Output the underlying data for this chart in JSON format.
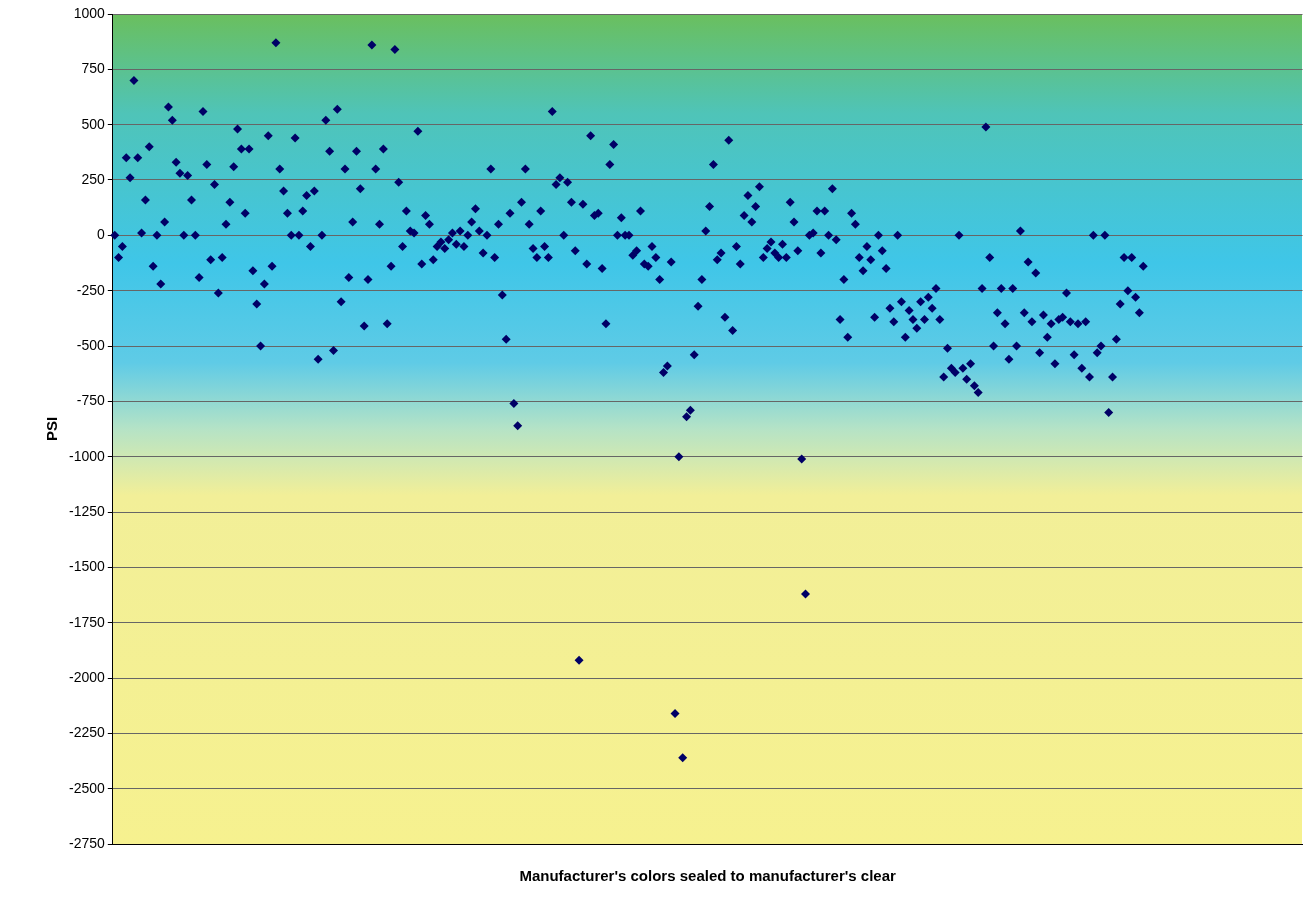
{
  "chart_data": {
    "type": "scatter",
    "xlabel": "Manufacturer's colors sealed to manufacturer's clear",
    "ylabel": "PSI",
    "categories": [
      null,
      null,
      null,
      null,
      null,
      null,
      null,
      null,
      null,
      null,
      null,
      null,
      null,
      null,
      null,
      null,
      null,
      null,
      null,
      null,
      null,
      null,
      null,
      null,
      null,
      null,
      null,
      null,
      null,
      null,
      null,
      null,
      null,
      null,
      null,
      null,
      null,
      null,
      null,
      null,
      null,
      null,
      null,
      null,
      null,
      null,
      null,
      null,
      null,
      null,
      null,
      null,
      null,
      null,
      null,
      null,
      null,
      null,
      null,
      null,
      null,
      null,
      null,
      null,
      null,
      null,
      null,
      null,
      null,
      null,
      null,
      null,
      null,
      null,
      null,
      null,
      null,
      null,
      null,
      null,
      null,
      null,
      null,
      null,
      null,
      null,
      null,
      null,
      null,
      null,
      null,
      null,
      null,
      null,
      null,
      null,
      null,
      null,
      null,
      null,
      null,
      null,
      null,
      null,
      null,
      null,
      null,
      null,
      null,
      null,
      null,
      null,
      null,
      null,
      null,
      null,
      null,
      null,
      null,
      null,
      null,
      null,
      null,
      null,
      null,
      null,
      null,
      null,
      null,
      null,
      null,
      null,
      null,
      null,
      null,
      null,
      null,
      null,
      null,
      null,
      null,
      null,
      null,
      null,
      null,
      null,
      null,
      null,
      null,
      null,
      null,
      null,
      null,
      null,
      null,
      null,
      null,
      null,
      null,
      null,
      null,
      null,
      null,
      null,
      null,
      null,
      null,
      null,
      null,
      null,
      null,
      null,
      null,
      null,
      null,
      null,
      null,
      null,
      null,
      null,
      null,
      null,
      null,
      null,
      null,
      null,
      null,
      null,
      null,
      null,
      null,
      null,
      null,
      null,
      null,
      null,
      null,
      null,
      null,
      null,
      null,
      null,
      null,
      null,
      null,
      null,
      null,
      null,
      null,
      null,
      null,
      null,
      null,
      null,
      null,
      null,
      null,
      null,
      null,
      null,
      null,
      null,
      null,
      null,
      null,
      null,
      null,
      null,
      null,
      null,
      null,
      null,
      null,
      null,
      null,
      null,
      null,
      null,
      null,
      null,
      null,
      null,
      null,
      null,
      null,
      null,
      null,
      null,
      null,
      null,
      null,
      null,
      null,
      null,
      null,
      null,
      null,
      null,
      null,
      null,
      null,
      null,
      null,
      null,
      null,
      null,
      null,
      null,
      null,
      null,
      null,
      null,
      null,
      null,
      null,
      null,
      null,
      null,
      null,
      null,
      null,
      null,
      null,
      null,
      null,
      null,
      null,
      null,
      null,
      null,
      null,
      null,
      null,
      null,
      null,
      null,
      null,
      null,
      null,
      null,
      null,
      null,
      null,
      null,
      null,
      null,
      null,
      null,
      null,
      null
    ],
    "series": [
      {
        "color": "#000066",
        "values": [
          0,
          -100,
          -50,
          350,
          260,
          700,
          350,
          10,
          160,
          400,
          -140,
          0,
          -220,
          60,
          580,
          520,
          330,
          280,
          0,
          270,
          160,
          0,
          -190,
          560,
          320,
          -110,
          230,
          -260,
          -100,
          50,
          150,
          310,
          480,
          390,
          100,
          390,
          -160,
          -310,
          -500,
          -220,
          450,
          -140,
          870,
          300,
          200,
          100,
          0,
          440,
          0,
          110,
          180,
          -50,
          200,
          -560,
          0,
          520,
          380,
          -520,
          570,
          -300,
          300,
          -190,
          60,
          380,
          210,
          -410,
          -200,
          860,
          300,
          50,
          390,
          -400,
          -140,
          840,
          240,
          -50,
          110,
          20,
          10,
          470,
          -130,
          90,
          50,
          -110,
          -50,
          -30,
          -60,
          -20,
          10,
          -40,
          20,
          -50,
          0,
          60,
          120,
          20,
          -80,
          0,
          300,
          -100,
          50,
          -270,
          -470,
          100,
          -760,
          -860,
          150,
          300,
          50,
          -60,
          -100,
          110,
          -50,
          -100,
          560,
          230,
          260,
          0,
          240,
          150,
          -70,
          -1920,
          140,
          -130,
          450,
          90,
          100,
          -150,
          -400,
          320,
          410,
          0,
          80,
          0,
          0,
          -90,
          -70,
          110,
          -130,
          -140,
          -50,
          -100,
          -200,
          -620,
          -590,
          -120,
          -2160,
          -1000,
          -2360,
          -820,
          -790,
          -540,
          -320,
          -200,
          20,
          130,
          320,
          -110,
          -80,
          -370,
          430,
          -430,
          -50,
          -130,
          90,
          180,
          60,
          130,
          220,
          -100,
          -60,
          -30,
          -80,
          -100,
          -40,
          -100,
          150,
          60,
          -70,
          -1010,
          -1620,
          0,
          10,
          110,
          -80,
          110,
          0,
          210,
          -20,
          -380,
          -200,
          -460,
          100,
          50,
          -100,
          -160,
          -50,
          -110,
          -370,
          0,
          -70,
          -150,
          -330,
          -390,
          0,
          -300,
          -460,
          -340,
          -380,
          -420,
          -300,
          -380,
          -280,
          -330,
          -240,
          -380,
          -640,
          -510,
          -600,
          -620,
          0,
          -600,
          -650,
          -580,
          -680,
          -710,
          -240,
          490,
          -100,
          -500,
          -350,
          -240,
          -400,
          -560,
          -240,
          -500,
          20,
          -350,
          -120,
          -390,
          -170,
          -530,
          -360,
          -460,
          -400,
          -580,
          -380,
          -370,
          -260,
          -390,
          -540,
          -400,
          -600,
          -390,
          -640,
          0,
          -530,
          -500,
          0,
          -800,
          -640,
          -470,
          -310,
          -100,
          -250,
          -100,
          -280,
          -350,
          -140,
          null,
          null,
          null,
          null,
          null,
          null,
          null,
          null,
          null,
          null,
          null,
          null,
          null,
          null,
          null,
          null,
          null,
          null,
          null,
          null,
          null,
          null,
          null,
          null,
          null,
          null,
          null,
          null,
          null,
          null,
          null,
          null,
          null,
          null,
          null,
          null,
          null,
          null,
          null,
          null,
          null
        ]
      }
    ],
    "ylim": [
      -2750,
      1000
    ],
    "yticks": [
      -2750,
      -2500,
      -2250,
      -2000,
      -1750,
      -1500,
      -1250,
      -1000,
      -750,
      -500,
      -250,
      0,
      250,
      500,
      750,
      1000
    ],
    "grid": "y",
    "legend": false,
    "marker": "diamond",
    "tick_labels": "y"
  }
}
